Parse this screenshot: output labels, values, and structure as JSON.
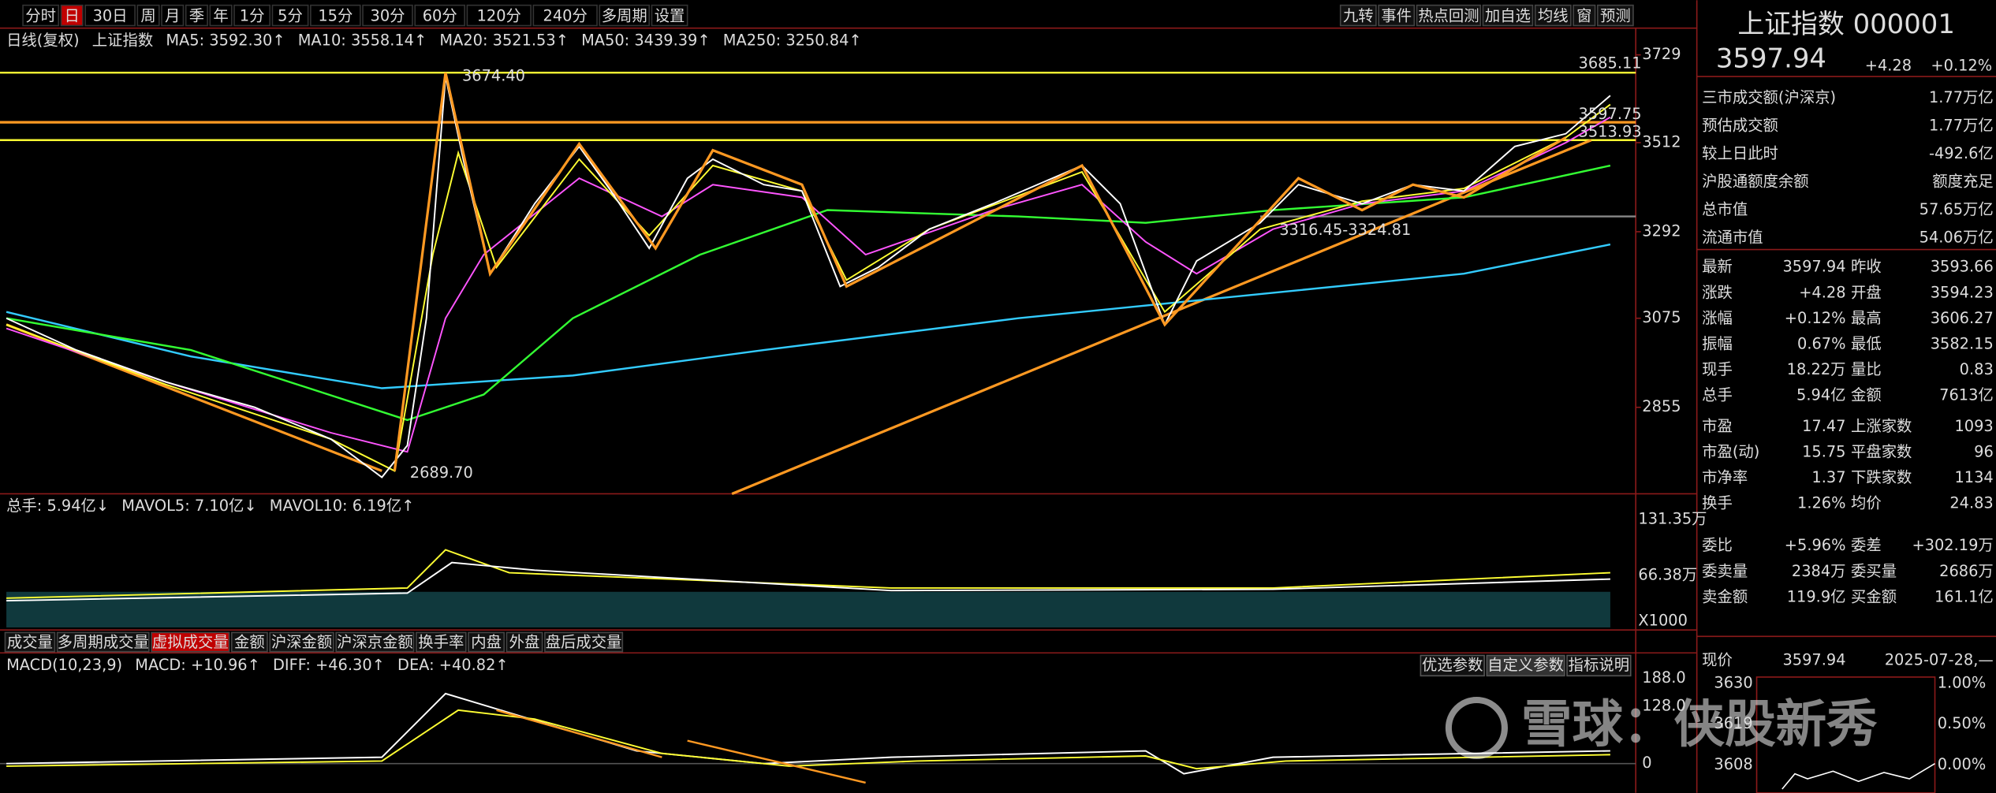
{
  "toolbar": {
    "periods": [
      "分时",
      "日",
      "30日",
      "周",
      "月",
      "季",
      "年",
      "1分",
      "5分",
      "15分",
      "30分",
      "60分",
      "120分",
      "240分",
      "多周期",
      "设置"
    ],
    "selected_period": 1,
    "tools": [
      "九转",
      "事件",
      "热点回测",
      "加自选",
      "均线",
      "窗",
      "预测"
    ]
  },
  "price_chart": {
    "legend": [
      {
        "text": "日线(复权)",
        "color": "#dddddd"
      },
      {
        "text": "上证指数",
        "color": "#dddddd"
      },
      {
        "text": "MA5: 3592.30↑",
        "color": "#ffffff"
      },
      {
        "text": "MA10: 3558.14↑",
        "color": "#ffff33"
      },
      {
        "text": "MA20: 3521.53↑",
        "color": "#ff55ff"
      },
      {
        "text": "MA50: 3439.39↑",
        "color": "#33ff33"
      },
      {
        "text": "MA250: 3250.84↑",
        "color": "#33ccff"
      }
    ],
    "axis_labels": [
      "3729",
      "3512",
      "3292",
      "3075",
      "2855"
    ],
    "annotations": [
      {
        "text": "3685.11",
        "color": "#ffff33"
      },
      {
        "text": "3674.40",
        "color": "#dddddd"
      },
      {
        "text": "2689.70",
        "color": "#dddddd"
      },
      {
        "text": "3316.45-3324.81",
        "color": "#dddddd"
      },
      {
        "text": "3597.75",
        "color": "#dddddd"
      },
      {
        "text": "3513.93",
        "color": "#dddddd"
      }
    ]
  },
  "volume_chart": {
    "legend": [
      {
        "text": "总手: 5.94亿↓",
        "color": "#33ccff"
      },
      {
        "text": "MAVOL5: 7.10亿↓",
        "color": "#ffff33"
      },
      {
        "text": "MAVOL10: 6.19亿↑",
        "color": "#ffffff"
      }
    ],
    "axis_labels": [
      "131.35万",
      "66.38万",
      "X1000"
    ],
    "tabs": [
      "成交量",
      "多周期成交量",
      "虚拟成交量",
      "金额",
      "沪深金额",
      "沪深京金额",
      "换手率",
      "内盘",
      "外盘",
      "盘后成交量"
    ],
    "selected_tab": 2
  },
  "macd_chart": {
    "legend": [
      {
        "text": "MACD(10,23,9)",
        "color": "#dddddd"
      },
      {
        "text": "MACD: +10.96↑",
        "color": "#ff4444"
      },
      {
        "text": "DIFF: +46.30↑",
        "color": "#ffffff"
      },
      {
        "text": "DEA: +40.82↑",
        "color": "#ffff33"
      }
    ],
    "buttons": [
      "优选参数",
      "自定义参数",
      "指标说明"
    ],
    "axis_labels": [
      "188.0",
      "128.0",
      "0"
    ]
  },
  "quote": {
    "name": "上证指数 000001",
    "price": "3597.94",
    "change": "+4.28",
    "change_pct": "+0.12%",
    "rows": [
      {
        "label": "三市成交额(沪深京)",
        "value": "1.77万亿",
        "color": "#33ccff"
      },
      {
        "label": "预估成交额",
        "value": "1.77万亿",
        "color": "#33ccff"
      },
      {
        "label": "较上日此时",
        "value": "-492.6亿",
        "color": "#33ff33"
      },
      {
        "label": "沪股通额度余额",
        "value": "额度充足",
        "color": "#33ccff"
      },
      {
        "label": "总市值",
        "value": "57.65万亿",
        "color": "#33ccff"
      },
      {
        "label": "流通市值",
        "value": "54.06万亿",
        "color": "#33ccff"
      }
    ]
  },
  "stats": {
    "rows": [
      [
        {
          "label": "最新",
          "value": "3597.94",
          "color": "#ff4444"
        },
        {
          "label": "昨收",
          "value": "3593.66",
          "color": "#dddddd"
        }
      ],
      [
        {
          "label": "涨跌",
          "value": "+4.28",
          "color": "#ff4444"
        },
        {
          "label": "开盘",
          "value": "3594.23",
          "color": "#ff4444"
        }
      ],
      [
        {
          "label": "涨幅",
          "value": "+0.12%",
          "color": "#ff4444"
        },
        {
          "label": "最高",
          "value": "3606.27",
          "color": "#ff4444"
        }
      ],
      [
        {
          "label": "振幅",
          "value": "0.67%",
          "color": "#33ccff"
        },
        {
          "label": "最低",
          "value": "3582.15",
          "color": "#33ff33"
        }
      ],
      [
        {
          "label": "现手",
          "value": "18.22万",
          "color": "#33ccff"
        },
        {
          "label": "量比",
          "value": "0.83",
          "color": "#33ff33"
        }
      ],
      [
        {
          "label": "总手",
          "value": "5.94亿",
          "color": "#33ccff"
        },
        {
          "label": "金额",
          "value": "7613亿",
          "color": "#33ccff"
        }
      ],
      [
        {
          "label": "市盈",
          "value": "17.47",
          "color": "#dddddd"
        },
        {
          "label": "上涨家数",
          "value": "1093",
          "color": "#ff4444"
        }
      ],
      [
        {
          "label": "市盈(动)",
          "value": "15.75",
          "color": "#dddddd"
        },
        {
          "label": "平盘家数",
          "value": "96",
          "color": "#dddddd"
        }
      ],
      [
        {
          "label": "市净率",
          "value": "1.37",
          "color": "#dddddd"
        },
        {
          "label": "下跌家数",
          "value": "1134",
          "color": "#33ff33"
        }
      ],
      [
        {
          "label": "换手",
          "value": "1.26%",
          "color": "#33ccff"
        },
        {
          "label": "均价",
          "value": "24.83",
          "color": "#ffff33"
        }
      ],
      [
        {
          "label": "委比",
          "value": "+5.96%",
          "color": "#ff4444"
        },
        {
          "label": "委差",
          "value": "+302.19万",
          "color": "#ff4444"
        }
      ],
      [
        {
          "label": "委卖量",
          "value": "2384万",
          "color": "#dddddd"
        },
        {
          "label": "委买量",
          "value": "2686万",
          "color": "#dddddd"
        }
      ],
      [
        {
          "label": "卖金额",
          "value": "119.9亿",
          "color": "#dddddd"
        },
        {
          "label": "买金额",
          "value": "161.1亿",
          "color": "#dddddd"
        }
      ]
    ]
  },
  "mini_chart": {
    "label": "现价",
    "price": "3597.94",
    "time": "2025-07-28,—",
    "left_axis": [
      "3630",
      "3619",
      "3608"
    ],
    "right_axis": [
      "1.00%",
      "0.50%",
      "0.00%"
    ]
  },
  "watermark": "雪球：侠股新秀"
}
